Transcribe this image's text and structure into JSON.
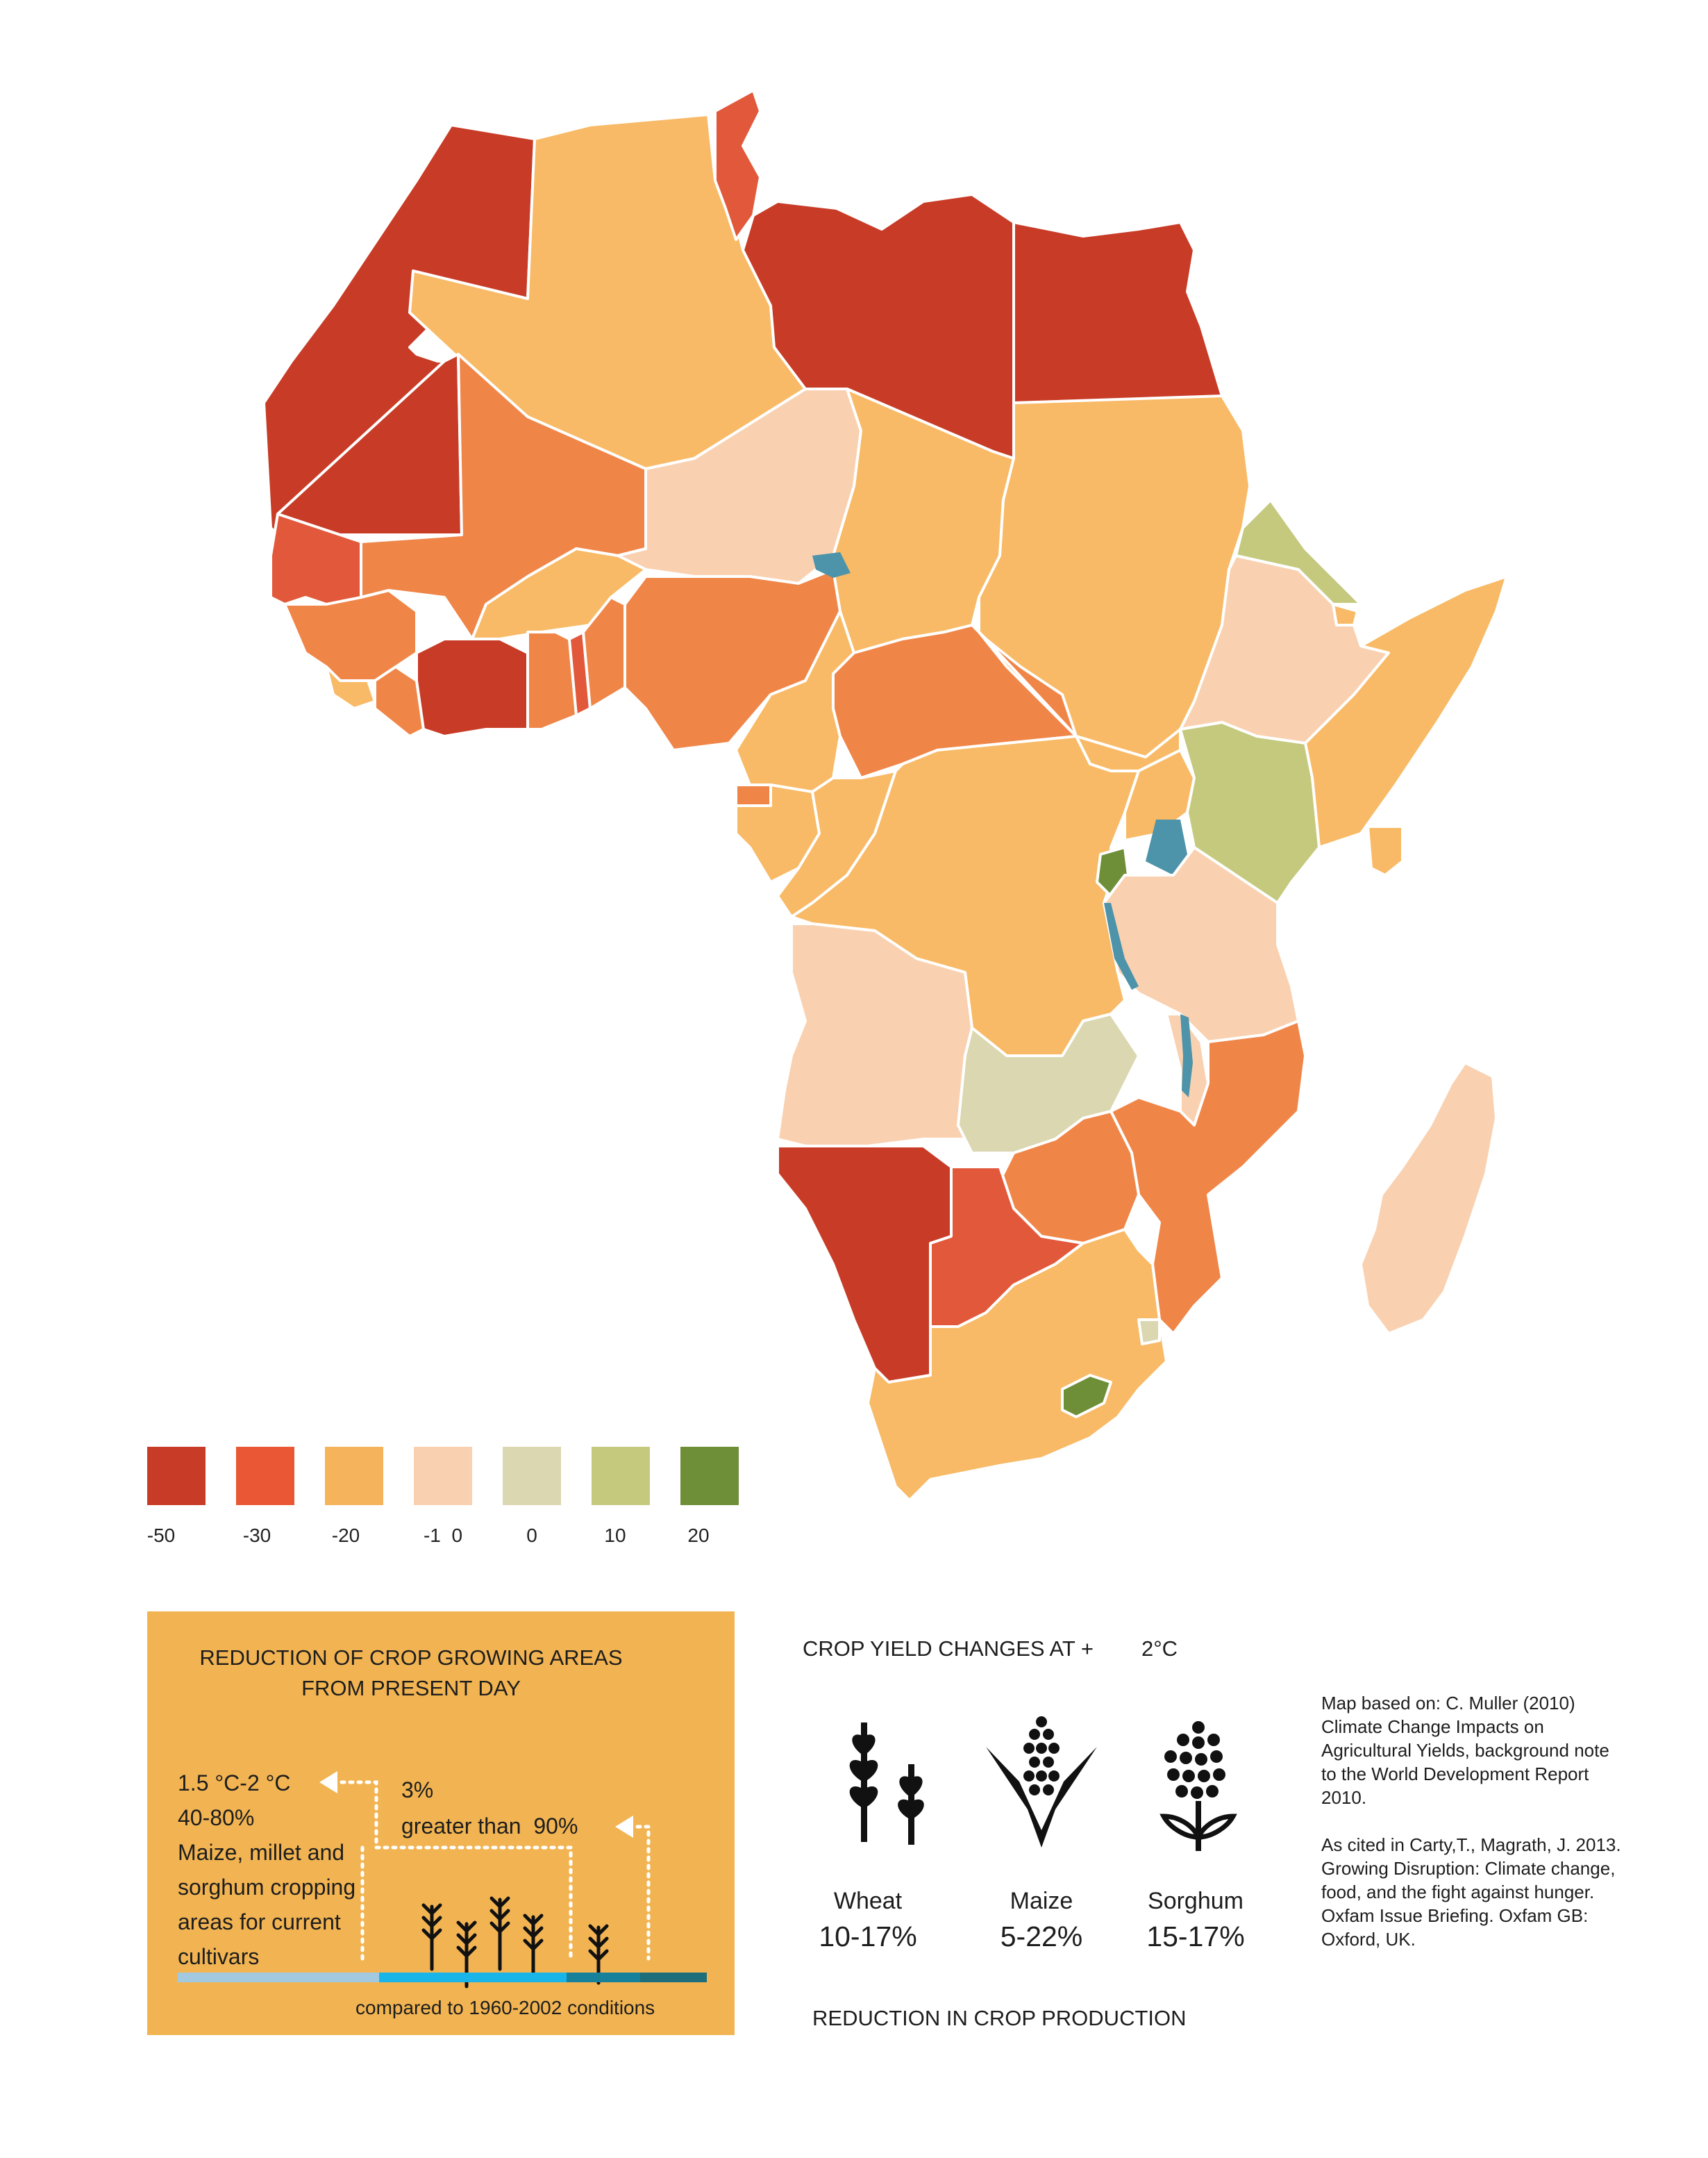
{
  "legend": {
    "title": "",
    "items": [
      {
        "label": "-50",
        "color": "#c83c27"
      },
      {
        "label": "-30",
        "color": "#e95734"
      },
      {
        "label": "-20",
        "color": "#f5b35b"
      },
      {
        "label": "-1  0",
        "color": "#f9d1b1"
      },
      {
        "label": "0",
        "color": "#dbd7b1"
      },
      {
        "label": "10",
        "color": "#c4c97e"
      },
      {
        "label": "20",
        "color": "#6e8f38"
      }
    ]
  },
  "map_colors": {
    "deep_red": "#c83c27",
    "red_orange": "#e2583a",
    "orange": "#f08548",
    "light_orange": "#f8ba66",
    "peach": "#f9d1b1",
    "pale_grey": "#dbd7b1",
    "light_green": "#c4c97e",
    "green": "#6e8f38",
    "water": "#4d93a9"
  },
  "crop_areas_box": {
    "title_line1": "REDUCTION OF CROP GROWING AREAS",
    "title_line2": "FROM PRESENT DAY",
    "scenario1_temp": "1.5 °C-2 °C",
    "scenario1_pct": "40-80%",
    "scenario1_desc": [
      "Maize, millet and",
      "sorghum cropping",
      "areas for current",
      "cultivars"
    ],
    "scenario2_temp": "3%",
    "scenario2_desc": "greater than  90%",
    "footnote": "compared to 1960-2002 conditions",
    "bar_colors": [
      "#a3c9e0",
      "#1ab5e8",
      "#17819c",
      "#1d6d7a"
    ]
  },
  "crop_yield": {
    "title": "CROP YIELD CHANGES AT +",
    "title_temp": "2°C",
    "crops": [
      {
        "name": "Wheat",
        "pct": "10-17%",
        "icon": "wheat-icon"
      },
      {
        "name": "Maize",
        "pct": "5-22%",
        "icon": "maize-icon"
      },
      {
        "name": "Sorghum",
        "pct": "15-17%",
        "icon": "sorghum-icon"
      }
    ],
    "footer": "REDUCTION IN CROP PRODUCTION"
  },
  "source": {
    "paragraph1": "Map based on: C. Muller (2010) Climate Change Impacts on Agricultural Yields, background note to the World Development Report 2010.",
    "paragraph2": "As cited in Carty,T., Magrath, J. 2013. Growing Disruption: Climate change, food, and the fight against hunger. Oxfam Issue Briefing. Oxfam GB: Oxford, UK."
  }
}
